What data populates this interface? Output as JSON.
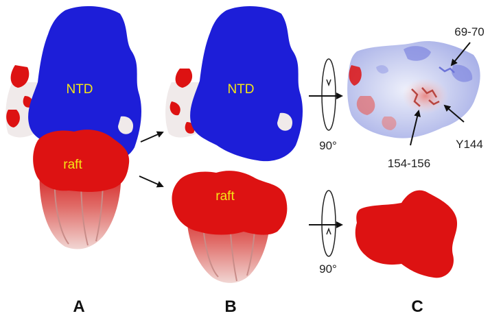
{
  "colors": {
    "positive_blue": "#1d1ed8",
    "negative_red": "#dd1212",
    "neutral_white": "#f2eeee",
    "pale_pink": "#e7b2ae",
    "label_yellow": "#f5e616"
  },
  "panel_a": {
    "letter": "A",
    "ntd_label": "NTD",
    "raft_label": "raft"
  },
  "panel_b": {
    "letter": "B",
    "ntd_label": "NTD",
    "raft_label": "raft"
  },
  "panel_c": {
    "letter": "C",
    "rotation_top": "90°",
    "rotation_bottom": "90°",
    "site_69_70": "69-70",
    "site_y144": "Y144",
    "site_154_156": "154-156"
  }
}
